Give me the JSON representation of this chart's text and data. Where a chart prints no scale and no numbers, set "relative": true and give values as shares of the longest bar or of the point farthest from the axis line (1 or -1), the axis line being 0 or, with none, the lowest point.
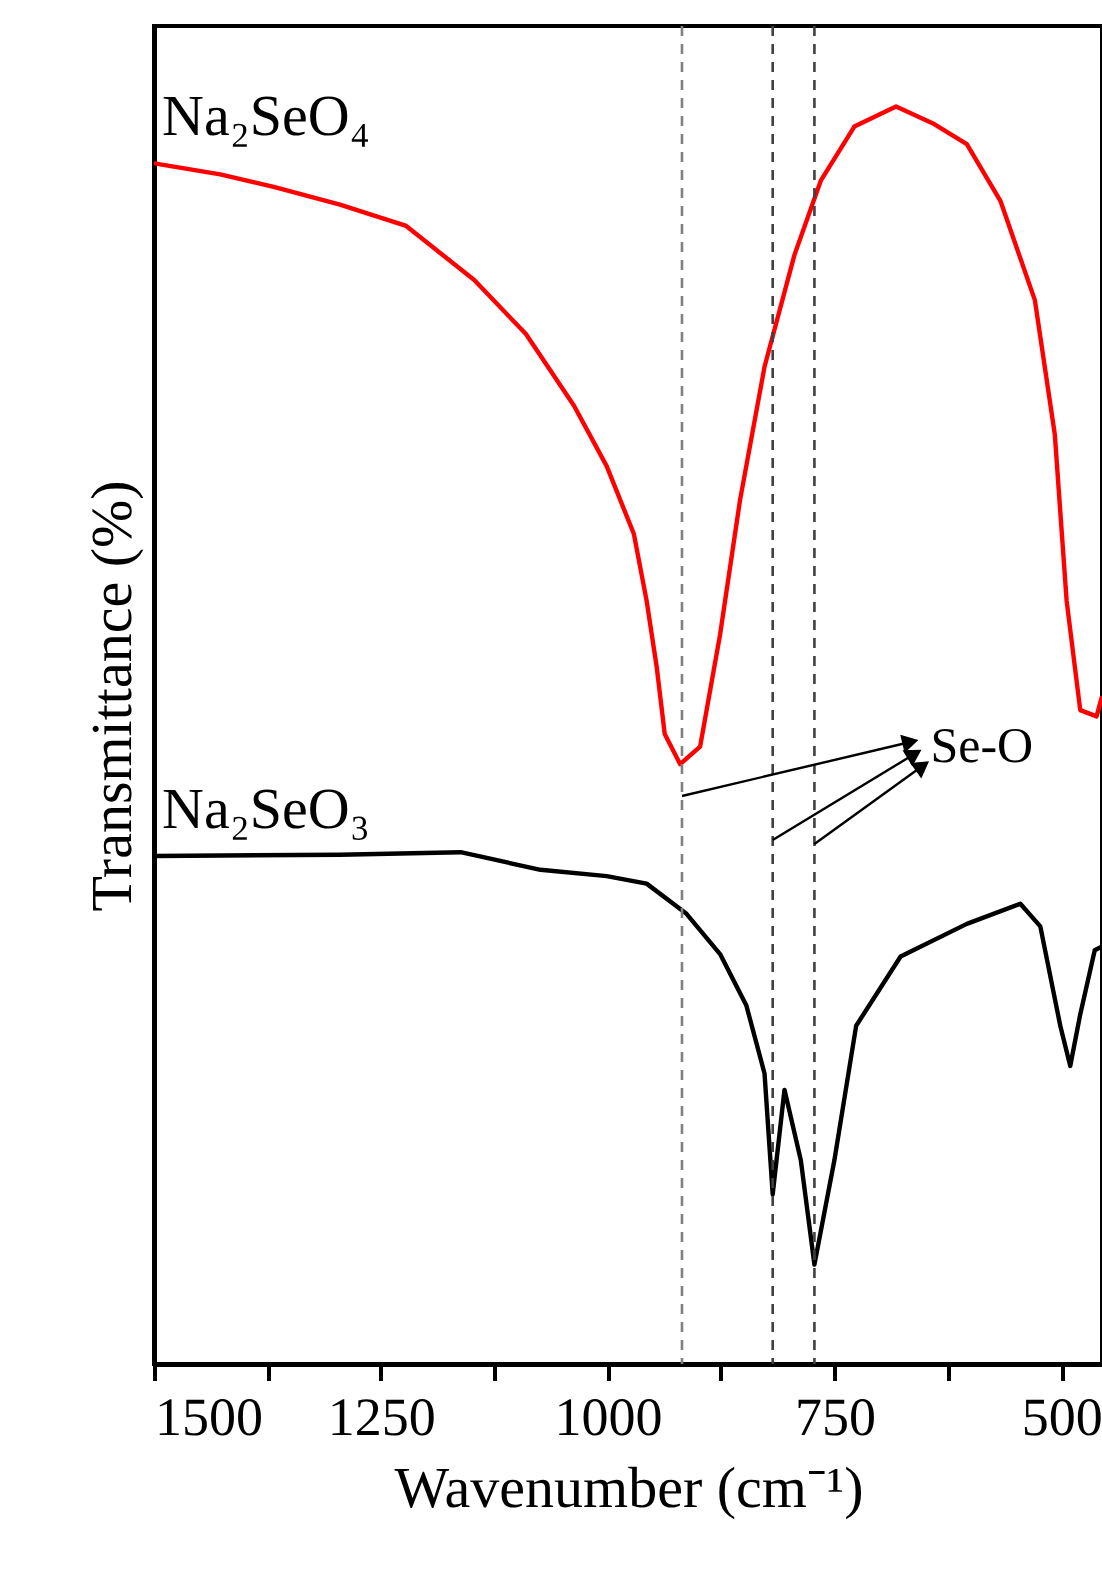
{
  "chart_data": {
    "type": "line",
    "relative": true,
    "xlabel": "Wavenumber (cm⁻¹)",
    "ylabel": "Transmittance (%)",
    "xlim": [
      1500,
      455
    ],
    "xticks": [
      1500,
      {
        "value": 1375,
        "label": null
      },
      1250,
      {
        "value": 1125,
        "label": null
      },
      1000,
      {
        "value": 875,
        "label": null
      },
      750,
      {
        "value": 625,
        "label": null
      },
      500
    ],
    "tick_labels": "x",
    "grid": false,
    "legend": false,
    "marker": "none",
    "line_style": "solid",
    "series": [
      {
        "name": "Na₂SeO₄",
        "color": "#ff0000",
        "x": [
          1500,
          1493,
          1427,
          1368,
          1295,
          1222,
          1147,
          1090,
          1037,
          1001,
          971,
          957,
          946,
          937,
          920,
          898,
          876,
          854,
          827,
          794,
          765,
          728,
          682,
          640,
          604,
          567,
          529,
          507,
          494,
          479,
          461,
          455
        ],
        "values": [
          0.955,
          0.954,
          0.946,
          0.936,
          0.922,
          0.905,
          0.862,
          0.819,
          0.762,
          0.714,
          0.66,
          0.607,
          0.555,
          0.501,
          0.477,
          0.491,
          0.58,
          0.687,
          0.793,
          0.882,
          0.941,
          0.984,
          1.0,
          0.986,
          0.97,
          0.925,
          0.846,
          0.739,
          0.607,
          0.52,
          0.515,
          0.531
        ]
      },
      {
        "name": "Na₂SeO₃",
        "color": "#000000",
        "x": [
          1500,
          1295,
          1162,
          1074,
          1001,
          957,
          913,
          876,
          847,
          827,
          818,
          805,
          787,
          772,
          750,
          726,
          677,
          604,
          545,
          523,
          501,
          490,
          479,
          463,
          455
        ],
        "values": [
          0.404,
          0.405,
          0.407,
          0.393,
          0.388,
          0.382,
          0.358,
          0.326,
          0.285,
          0.231,
          0.135,
          0.218,
          0.162,
          0.079,
          0.162,
          0.269,
          0.324,
          0.35,
          0.366,
          0.348,
          0.269,
          0.237,
          0.278,
          0.329,
          0.332
        ]
      }
    ],
    "ref_lines": [
      {
        "axis": "x",
        "value": 918,
        "label": null,
        "color": "#808080",
        "line_style": "dashed"
      },
      {
        "axis": "x",
        "value": 818,
        "label": null,
        "color": "#404040",
        "line_style": "dashed"
      },
      {
        "axis": "x",
        "value": 772,
        "label": null,
        "color": "#404040",
        "line_style": "dashed"
      }
    ],
    "annotations": [
      "Se-O"
    ]
  }
}
